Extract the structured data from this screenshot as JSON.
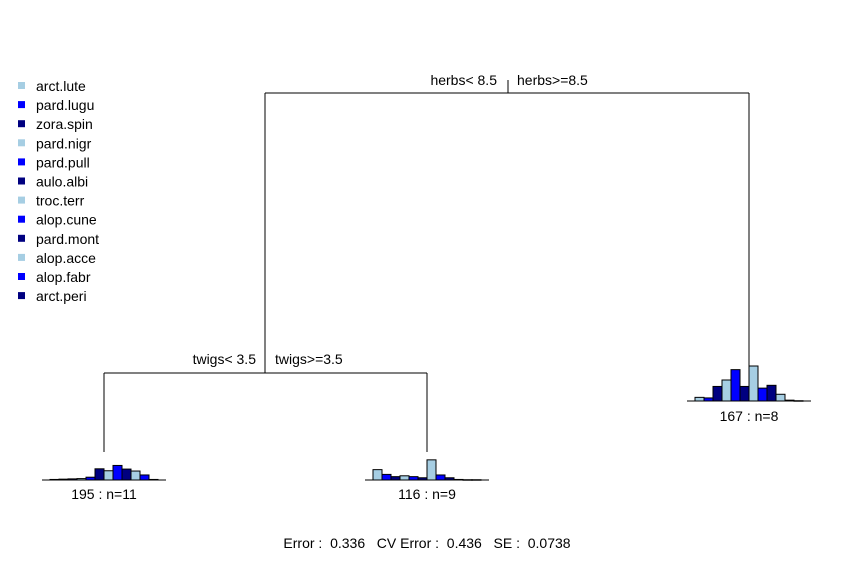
{
  "colors": {
    "light": "#a6cee3",
    "medium": "#0000ff",
    "dark": "#000080"
  },
  "legend": {
    "items": [
      {
        "label": "arct.lute",
        "color": "#a6cee3"
      },
      {
        "label": "pard.lugu",
        "color": "#0000ff"
      },
      {
        "label": "zora.spin",
        "color": "#000080"
      },
      {
        "label": "pard.nigr",
        "color": "#a6cee3"
      },
      {
        "label": "pard.pull",
        "color": "#0000ff"
      },
      {
        "label": "aulo.albi",
        "color": "#000080"
      },
      {
        "label": "troc.terr",
        "color": "#a6cee3"
      },
      {
        "label": "alop.cune",
        "color": "#0000ff"
      },
      {
        "label": "pard.mont",
        "color": "#000080"
      },
      {
        "label": "alop.acce",
        "color": "#a6cee3"
      },
      {
        "label": "alop.fabr",
        "color": "#0000ff"
      },
      {
        "label": "arct.peri",
        "color": "#000080"
      }
    ]
  },
  "splits": {
    "root": {
      "left_label": "herbs< 8.5",
      "right_label": "herbs>=8.5"
    },
    "left": {
      "left_label": "twigs< 3.5",
      "right_label": "twigs>=3.5"
    }
  },
  "leaves": [
    {
      "label": "195 : n=11",
      "values": [
        0.2,
        0.3,
        0.4,
        0.5,
        1.0,
        4.0,
        3.3,
        5.2,
        3.9,
        3.2,
        1.8,
        0.2
      ]
    },
    {
      "label": "116 : n=9",
      "values": [
        3.7,
        2.0,
        1.2,
        1.5,
        1.2,
        0.8,
        7.2,
        1.8,
        0.8,
        0.2,
        0.1,
        0.1
      ]
    },
    {
      "label": "167 : n=8",
      "values": [
        1.3,
        1.1,
        5.2,
        7.5,
        11.2,
        5.2,
        12.5,
        4.6,
        5.6,
        2.4,
        0.3,
        0.1
      ]
    }
  ],
  "footer": {
    "error_text": "Error :  0.336   CV Error :  0.436   SE :  0.0738"
  }
}
